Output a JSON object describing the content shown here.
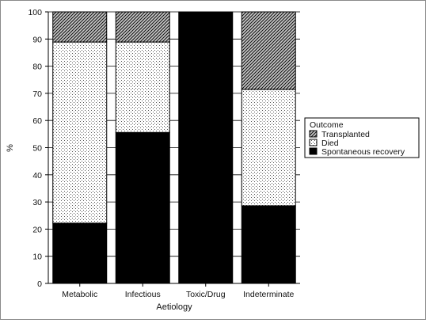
{
  "chart_data": {
    "type": "bar",
    "stacked": true,
    "categories": [
      "Metabolic",
      "Infectious",
      "Toxic/Drug",
      "Indeterminate"
    ],
    "series": [
      {
        "name": "Spontaneous recovery",
        "values": [
          22.2,
          55.6,
          100,
          28.6
        ],
        "pattern": "solid",
        "color": "#000000"
      },
      {
        "name": "Died",
        "values": [
          66.7,
          33.3,
          0,
          42.9
        ],
        "pattern": "dots",
        "color": "#000000"
      },
      {
        "name": "Transplanted",
        "values": [
          11.1,
          11.1,
          0,
          28.5
        ],
        "pattern": "hatch",
        "color": "#000000"
      }
    ],
    "xlabel": "Aetiology",
    "ylabel": "%",
    "ylim": [
      0,
      100
    ],
    "yticks": [
      0,
      10,
      20,
      30,
      40,
      50,
      60,
      70,
      80,
      90,
      100
    ],
    "grid": true,
    "legend": {
      "title": "Outcome",
      "entries": [
        "Transplanted",
        "Died",
        "Spontaneous recovery"
      ],
      "placement": "right"
    }
  }
}
